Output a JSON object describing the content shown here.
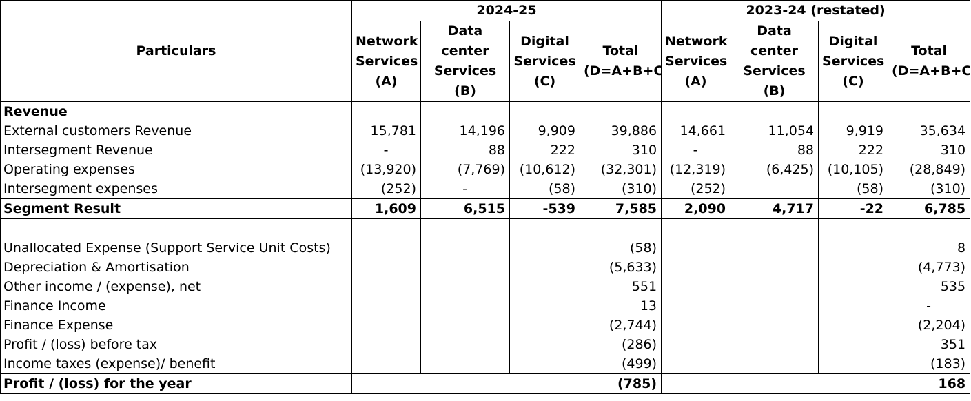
{
  "header": {
    "particulars": "Particulars",
    "period1": "2024-25",
    "period2": "2023-24 (restated)",
    "columns": [
      [
        "Network",
        "Services",
        "(A)"
      ],
      [
        "Data",
        "center",
        "Services",
        "(B)"
      ],
      [
        "Digital",
        "Services",
        "(C)"
      ],
      [
        "Total",
        "(D=A+B+C)"
      ],
      [
        "Network",
        "Services",
        "(A)"
      ],
      [
        "Data",
        "center",
        "Services",
        "(B)"
      ],
      [
        "Digital",
        "Services",
        "(C)"
      ],
      [
        "Total",
        "(D=A+B+C)"
      ]
    ]
  },
  "section1": {
    "heading": "Revenue",
    "rows": [
      {
        "label": "External customers Revenue",
        "values": [
          "15,781",
          "14,196",
          "9,909",
          "39,886",
          "14,661",
          "11,054",
          "9,919",
          "35,634"
        ]
      },
      {
        "label": "Intersegment Revenue",
        "values": [
          "-",
          "88",
          "222",
          "310",
          "-",
          "88",
          "222",
          "310"
        ]
      },
      {
        "label": "Operating expenses",
        "values": [
          "(13,920)",
          "(7,769)",
          "(10,612)",
          "(32,301)",
          "(12,319)",
          "(6,425)",
          "(10,105)",
          "(28,849)"
        ]
      },
      {
        "label": "Intersegment expenses",
        "values": [
          "(252)",
          "-",
          "(58)",
          "(310)",
          "(252)",
          "",
          "(58)",
          "(310)"
        ]
      }
    ]
  },
  "segment_result": {
    "label": "Segment Result",
    "values": [
      "1,609",
      "6,515",
      "-539",
      "7,585",
      "2,090",
      "4,717",
      "-22",
      "6,785"
    ]
  },
  "section2": {
    "rows": [
      {
        "label": "Unallocated Expense (Support Service Unit Costs)",
        "total1": "(58)",
        "total2": "8"
      },
      {
        "label": "Depreciation & Amortisation",
        "total1": "(5,633)",
        "total2": "(4,773)"
      },
      {
        "label": "Other income / (expense), net",
        "total1": "551",
        "total2": "535"
      },
      {
        "label": "Finance Income",
        "total1": "13",
        "total2": "-"
      },
      {
        "label": "Finance Expense",
        "total1": "(2,744)",
        "total2": "(2,204)"
      },
      {
        "label": "Profit / (loss) before tax",
        "total1": "(286)",
        "total2": "351"
      },
      {
        "label": "Income taxes (expense)/ benefit",
        "total1": "(499)",
        "total2": "(183)"
      }
    ]
  },
  "profit": {
    "label": "Profit / (loss) for the year",
    "total1": "(785)",
    "total2": "168"
  }
}
